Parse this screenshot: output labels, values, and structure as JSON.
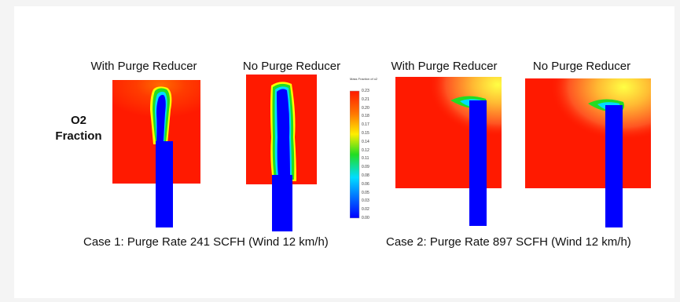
{
  "panels": [
    {
      "title": "With Purge Reducer"
    },
    {
      "title": "No Purge Reducer"
    },
    {
      "title": "With Purge Reducer"
    },
    {
      "title": "No Purge Reducer"
    }
  ],
  "row_label_line1": "O2",
  "row_label_line2": "Fraction",
  "cases": [
    {
      "caption": "Case 1: Purge Rate 241 SCFH (Wind 12 km/h)"
    },
    {
      "caption": "Case 2: Purge Rate 897 SCFH (Wind 12 km/h)"
    }
  ],
  "colorbar": {
    "title": "Mass Fraction of o2",
    "ticks": [
      "0.23",
      "0.21",
      "0.20",
      "0.18",
      "0.17",
      "0.15",
      "0.14",
      "0.12",
      "0.11",
      "0.09",
      "0.08",
      "0.06",
      "0.05",
      "0.03",
      "0.02",
      "0.00"
    ]
  },
  "colors": {
    "high": "#ff1a00",
    "mid_orange": "#ff9900",
    "mid_yellow": "#ffff00",
    "mid_green": "#22dd22",
    "mid_cyan": "#00ddff",
    "low": "#0000ff"
  }
}
